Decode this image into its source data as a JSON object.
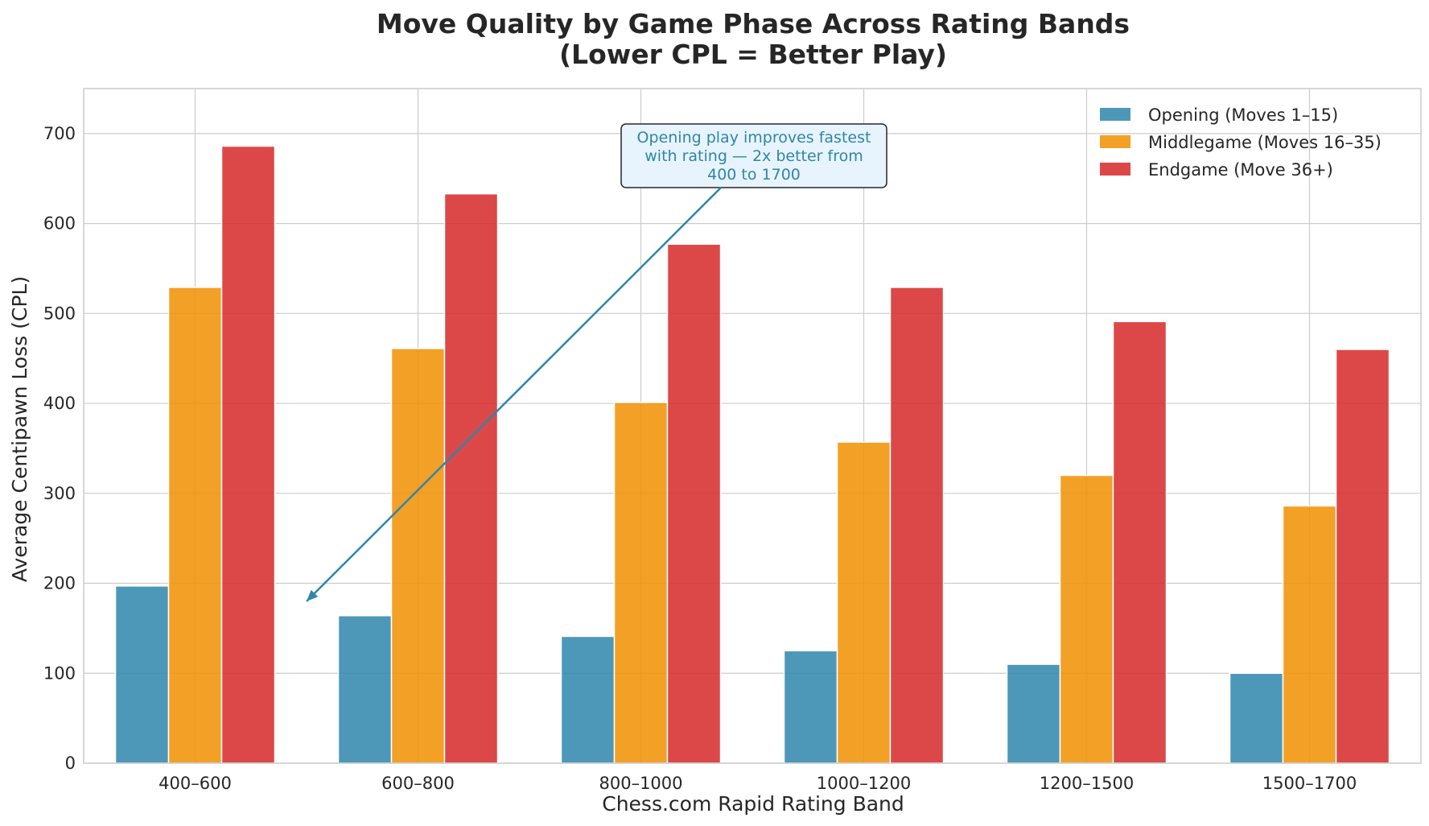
{
  "chart_data": {
    "type": "bar",
    "title": "Move Quality by Game Phase Across Rating Bands",
    "subtitle": "(Lower CPL = Better Play)",
    "xlabel": "Chess.com Rapid Rating Band",
    "ylabel": "Average Centipawn Loss (CPL)",
    "categories": [
      "400–600",
      "600–800",
      "800–1000",
      "1000–1200",
      "1200–1500",
      "1500–1700"
    ],
    "ylim": [
      0,
      750
    ],
    "yticks": [
      0,
      100,
      200,
      300,
      400,
      500,
      600,
      700
    ],
    "grid": true,
    "legend_position": "top-right",
    "series": [
      {
        "name": "Opening (Moves 1–15)",
        "color": "#2E86AB",
        "values": [
          197,
          164,
          141,
          125,
          110,
          100
        ]
      },
      {
        "name": "Middlegame (Moves 16–35)",
        "color": "#F18F01",
        "values": [
          529,
          461,
          401,
          357,
          320,
          286
        ]
      },
      {
        "name": "Endgame (Move 36+)",
        "color": "#D62828",
        "values": [
          686,
          633,
          577,
          529,
          491,
          460
        ]
      }
    ],
    "annotation": {
      "lines": [
        "Opening play improves fastest",
        "with rating — 2x better from",
        "400 to 1700"
      ],
      "color": "#2E86AB",
      "box_fill": "#E8F4FD",
      "box_edge": "#262626",
      "arrow_target": {
        "x_between": [
          "400–600",
          "600–800"
        ],
        "y": 180
      }
    }
  }
}
